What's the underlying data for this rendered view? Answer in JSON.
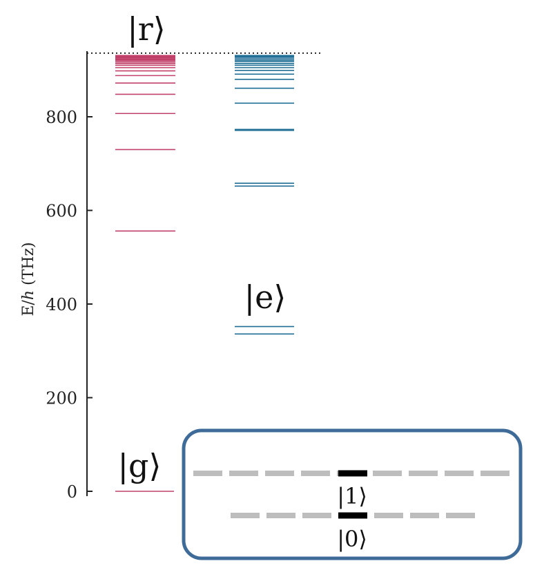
{
  "y_axis": {
    "label_prefix": "E/",
    "label_var": "h",
    "label_unit": " (THz)",
    "range": [
      0,
      930
    ],
    "ticks": [
      {
        "value": 0,
        "label": "0"
      },
      {
        "value": 200,
        "label": "200"
      },
      {
        "value": 400,
        "label": "400"
      },
      {
        "value": 600,
        "label": "600"
      },
      {
        "value": 800,
        "label": "800"
      }
    ]
  },
  "colors": {
    "rydberg": "#c0406a",
    "excited": "#1f6e96",
    "inset_border": "#3f6b99",
    "inset_dash": "#bdbdbd",
    "inset_state": "#000000",
    "axis": "#222222"
  },
  "ionization_limit": {
    "value": 936
  },
  "states": {
    "g": {
      "label": "|g⟩",
      "levels": [
        0
      ]
    },
    "r": {
      "label": "|r⟩",
      "levels": [
        556,
        730,
        807,
        848,
        872,
        888,
        898,
        905,
        910,
        914,
        917,
        920,
        922,
        924,
        926,
        927,
        928,
        929,
        930,
        931
      ]
    },
    "e": {
      "label": "|e⟩",
      "levels": [
        336,
        352,
        652,
        658,
        771,
        773,
        829,
        861,
        880,
        891,
        899,
        905,
        910,
        914,
        918,
        921,
        924,
        927,
        929,
        931
      ]
    }
  },
  "inset": {
    "state_1": "|1⟩",
    "state_0": "|0⟩"
  }
}
